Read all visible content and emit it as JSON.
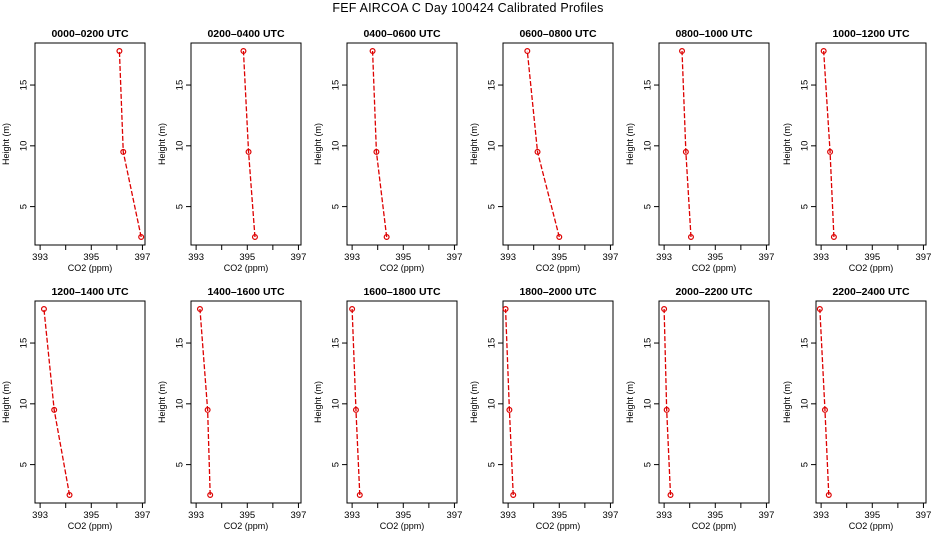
{
  "title": "FEF AIRCOA C  Day 100424  Calibrated Profiles",
  "colors": {
    "series": "#dd0000",
    "frame": "#000000"
  },
  "chart_data": [
    {
      "type": "line",
      "title": "0000–0200 UTC",
      "xlabel": "CO2 (ppm)",
      "ylabel": "Height (m)",
      "xlim": [
        392.8,
        397.1
      ],
      "ylim": [
        2.5,
        17.8
      ],
      "xticks": [
        393,
        395,
        397
      ],
      "yticks": [
        5,
        10,
        15
      ],
      "x": [
        396.95,
        396.25,
        396.1
      ],
      "y": [
        2.5,
        9.5,
        17.8
      ]
    },
    {
      "type": "line",
      "title": "0200–0400 UTC",
      "xlabel": "CO2 (ppm)",
      "ylabel": "Height (m)",
      "xlim": [
        392.8,
        397.1
      ],
      "ylim": [
        2.5,
        17.8
      ],
      "xticks": [
        393,
        395,
        397
      ],
      "yticks": [
        5,
        10,
        15
      ],
      "x": [
        395.3,
        395.05,
        394.85
      ],
      "y": [
        2.5,
        9.5,
        17.8
      ]
    },
    {
      "type": "line",
      "title": "0400–0600 UTC",
      "xlabel": "CO2 (ppm)",
      "ylabel": "Height (m)",
      "xlim": [
        392.8,
        397.1
      ],
      "ylim": [
        2.5,
        17.8
      ],
      "xticks": [
        393,
        395,
        397
      ],
      "yticks": [
        5,
        10,
        15
      ],
      "x": [
        394.35,
        393.95,
        393.8
      ],
      "y": [
        2.5,
        9.5,
        17.8
      ]
    },
    {
      "type": "line",
      "title": "0600–0800 UTC",
      "xlabel": "CO2 (ppm)",
      "ylabel": "Height (m)",
      "xlim": [
        392.8,
        397.1
      ],
      "ylim": [
        2.5,
        17.8
      ],
      "xticks": [
        393,
        395,
        397
      ],
      "yticks": [
        5,
        10,
        15
      ],
      "x": [
        395.0,
        394.15,
        393.75
      ],
      "y": [
        2.5,
        9.5,
        17.8
      ]
    },
    {
      "type": "line",
      "title": "0800–1000 UTC",
      "xlabel": "CO2 (ppm)",
      "ylabel": "Height (m)",
      "xlim": [
        392.8,
        397.1
      ],
      "ylim": [
        2.5,
        17.8
      ],
      "xticks": [
        393,
        395,
        397
      ],
      "yticks": [
        5,
        10,
        15
      ],
      "x": [
        394.05,
        393.85,
        393.7
      ],
      "y": [
        2.5,
        9.5,
        17.8
      ]
    },
    {
      "type": "line",
      "title": "1000–1200 UTC",
      "xlabel": "CO2 (ppm)",
      "ylabel": "Height (m)",
      "xlim": [
        392.8,
        397.1
      ],
      "ylim": [
        2.5,
        17.8
      ],
      "xticks": [
        393,
        395,
        397
      ],
      "yticks": [
        5,
        10,
        15
      ],
      "x": [
        393.5,
        393.35,
        393.1
      ],
      "y": [
        2.5,
        9.5,
        17.8
      ]
    },
    {
      "type": "line",
      "title": "1200–1400 UTC",
      "xlabel": "CO2 (ppm)",
      "ylabel": "Height (m)",
      "xlim": [
        392.8,
        397.1
      ],
      "ylim": [
        2.5,
        17.8
      ],
      "xticks": [
        393,
        395,
        397
      ],
      "yticks": [
        5,
        10,
        15
      ],
      "x": [
        394.15,
        393.55,
        393.15
      ],
      "y": [
        2.5,
        9.5,
        17.8
      ]
    },
    {
      "type": "line",
      "title": "1400–1600 UTC",
      "xlabel": "CO2 (ppm)",
      "ylabel": "Height (m)",
      "xlim": [
        392.8,
        397.1
      ],
      "ylim": [
        2.5,
        17.8
      ],
      "xticks": [
        393,
        395,
        397
      ],
      "yticks": [
        5,
        10,
        15
      ],
      "x": [
        393.55,
        393.45,
        393.15
      ],
      "y": [
        2.5,
        9.5,
        17.8
      ]
    },
    {
      "type": "line",
      "title": "1600–1800 UTC",
      "xlabel": "CO2 (ppm)",
      "ylabel": "Height (m)",
      "xlim": [
        392.8,
        397.1
      ],
      "ylim": [
        2.5,
        17.8
      ],
      "xticks": [
        393,
        395,
        397
      ],
      "yticks": [
        5,
        10,
        15
      ],
      "x": [
        393.3,
        393.15,
        393.0
      ],
      "y": [
        2.5,
        9.5,
        17.8
      ]
    },
    {
      "type": "line",
      "title": "1800–2000 UTC",
      "xlabel": "CO2 (ppm)",
      "ylabel": "Height (m)",
      "xlim": [
        392.8,
        397.1
      ],
      "ylim": [
        2.5,
        17.8
      ],
      "xticks": [
        393,
        395,
        397
      ],
      "yticks": [
        5,
        10,
        15
      ],
      "x": [
        393.2,
        393.05,
        392.9
      ],
      "y": [
        2.5,
        9.5,
        17.8
      ]
    },
    {
      "type": "line",
      "title": "2000–2200 UTC",
      "xlabel": "CO2 (ppm)",
      "ylabel": "Height (m)",
      "xlim": [
        392.8,
        397.1
      ],
      "ylim": [
        2.5,
        17.8
      ],
      "xticks": [
        393,
        395,
        397
      ],
      "yticks": [
        5,
        10,
        15
      ],
      "x": [
        393.25,
        393.1,
        393.0
      ],
      "y": [
        2.5,
        9.5,
        17.8
      ]
    },
    {
      "type": "line",
      "title": "2200–2400 UTC",
      "xlabel": "CO2 (ppm)",
      "ylabel": "Height (m)",
      "xlim": [
        392.8,
        397.1
      ],
      "ylim": [
        2.5,
        17.8
      ],
      "xticks": [
        393,
        395,
        397
      ],
      "yticks": [
        5,
        10,
        15
      ],
      "x": [
        393.3,
        393.15,
        392.95
      ],
      "y": [
        2.5,
        9.5,
        17.8
      ]
    }
  ]
}
